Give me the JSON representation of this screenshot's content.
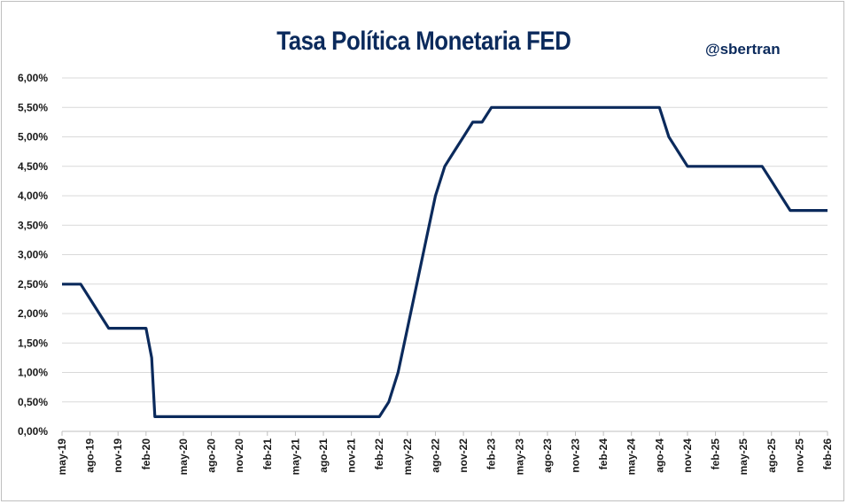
{
  "title": "Tasa Política Monetaria FED",
  "handle": "@sbertran",
  "colors": {
    "line": "#0b2a5c",
    "grid": "#d9d9d9",
    "title": "#0b2a5c"
  },
  "chart_data": {
    "type": "line",
    "title": "Tasa Política Monetaria FED",
    "xlabel": "",
    "ylabel": "",
    "ylim": [
      0,
      6
    ],
    "grid": true,
    "y_ticks": [
      "0,00%",
      "0,50%",
      "1,00%",
      "1,50%",
      "2,00%",
      "2,50%",
      "3,00%",
      "3,50%",
      "4,00%",
      "4,50%",
      "5,00%",
      "5,50%",
      "6,00%"
    ],
    "x_ticks": [
      "may-19",
      "ago-19",
      "nov-19",
      "feb-20",
      "may-20",
      "ago-20",
      "nov-20",
      "feb-21",
      "may-21",
      "ago-21",
      "nov-21",
      "feb-22",
      "may-22",
      "ago-22",
      "nov-22",
      "feb-23",
      "may-23",
      "ago-23",
      "nov-23",
      "feb-24",
      "may-24",
      "ago-24",
      "nov-24",
      "feb-25",
      "may-25",
      "ago-25",
      "nov-25",
      "feb-26"
    ],
    "series": [
      {
        "x": [
          "may-19",
          "jun-19",
          "jul-19",
          "ago-19",
          "sep-19",
          "oct-19",
          "nov-19",
          "dic-19",
          "ene-20",
          "feb-20",
          "mar-20",
          "mar-20b",
          "abr-20",
          "may-20",
          "jun-20",
          "jul-20",
          "ago-20",
          "sep-20",
          "oct-20",
          "nov-20",
          "dic-20",
          "ene-21",
          "feb-21",
          "mar-21",
          "abr-21",
          "may-21",
          "jun-21",
          "jul-21",
          "ago-21",
          "sep-21",
          "oct-21",
          "nov-21",
          "dic-21",
          "ene-22",
          "feb-22",
          "mar-22",
          "abr-22",
          "may-22",
          "jun-22",
          "jul-22",
          "ago-22",
          "sep-22",
          "oct-22",
          "nov-22",
          "dic-22",
          "ene-23",
          "feb-23",
          "mar-23",
          "abr-23",
          "may-23",
          "jun-23",
          "jul-23",
          "ago-23",
          "sep-23",
          "oct-23",
          "nov-23",
          "dic-23",
          "ene-24",
          "feb-24",
          "mar-24",
          "abr-24",
          "may-24",
          "jun-24",
          "jul-24",
          "ago-24",
          "sep-24",
          "oct-24",
          "nov-24",
          "dic-24",
          "ene-25",
          "feb-25",
          "mar-25",
          "abr-25",
          "may-25",
          "jun-25",
          "jul-25",
          "ago-25",
          "sep-25",
          "oct-25",
          "nov-25",
          "dic-25",
          "ene-26",
          "feb-26"
        ],
        "values": [
          2.5,
          2.5,
          2.5,
          2.25,
          2.0,
          1.75,
          1.75,
          1.75,
          1.75,
          1.75,
          1.25,
          0.25,
          0.25,
          0.25,
          0.25,
          0.25,
          0.25,
          0.25,
          0.25,
          0.25,
          0.25,
          0.25,
          0.25,
          0.25,
          0.25,
          0.25,
          0.25,
          0.25,
          0.25,
          0.25,
          0.25,
          0.25,
          0.25,
          0.25,
          0.25,
          0.5,
          1.0,
          1.75,
          2.5,
          3.25,
          4.0,
          4.5,
          4.75,
          5.0,
          5.25,
          5.25,
          5.5,
          5.5,
          5.5,
          5.5,
          5.5,
          5.5,
          5.5,
          5.5,
          5.5,
          5.5,
          5.5,
          5.5,
          5.5,
          5.5,
          5.5,
          5.5,
          5.5,
          5.5,
          5.5,
          5.0,
          4.75,
          4.5,
          4.5,
          4.5,
          4.5,
          4.5,
          4.5,
          4.5,
          4.5,
          4.5,
          4.25,
          4.0,
          3.75,
          3.75,
          3.75,
          3.75,
          3.75
        ]
      }
    ]
  }
}
